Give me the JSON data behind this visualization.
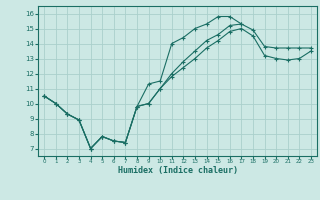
{
  "xlabel": "Humidex (Indice chaleur)",
  "xlim": [
    -0.5,
    23.5
  ],
  "ylim": [
    6.5,
    16.5
  ],
  "xticks": [
    0,
    1,
    2,
    3,
    4,
    5,
    6,
    7,
    8,
    9,
    10,
    11,
    12,
    13,
    14,
    15,
    16,
    17,
    18,
    19,
    20,
    21,
    22,
    23
  ],
  "yticks": [
    7,
    8,
    9,
    10,
    11,
    12,
    13,
    14,
    15,
    16
  ],
  "bg_color": "#cce8e4",
  "grid_color": "#aad0cc",
  "line_color": "#1a6e64",
  "line1_x": [
    0,
    1,
    2,
    3,
    4,
    5,
    6,
    7,
    8,
    9,
    10,
    11,
    12,
    13,
    14,
    15,
    16,
    17
  ],
  "line1_y": [
    10.5,
    10.0,
    9.3,
    8.9,
    7.0,
    7.8,
    7.5,
    7.4,
    9.8,
    11.3,
    11.5,
    14.0,
    14.4,
    15.0,
    15.3,
    15.8,
    15.8,
    15.3
  ],
  "line2_x": [
    0,
    1,
    2,
    3,
    4,
    5,
    6,
    7,
    8,
    9,
    10,
    11,
    12,
    13,
    14,
    15,
    16,
    17,
    18,
    19,
    20,
    21,
    22,
    23
  ],
  "line2_y": [
    10.5,
    10.0,
    9.3,
    8.9,
    7.0,
    7.8,
    7.5,
    7.4,
    9.8,
    10.0,
    11.0,
    12.0,
    12.8,
    13.5,
    14.2,
    14.6,
    15.2,
    15.3,
    14.9,
    13.8,
    13.7,
    13.7,
    13.7,
    13.7
  ],
  "line3_x": [
    0,
    1,
    2,
    3,
    4,
    5,
    6,
    7,
    8,
    9,
    10,
    11,
    12,
    13,
    14,
    15,
    16,
    17,
    18,
    19,
    20,
    21,
    22,
    23
  ],
  "line3_y": [
    10.5,
    10.0,
    9.3,
    8.9,
    7.0,
    7.8,
    7.5,
    7.4,
    9.8,
    10.0,
    11.0,
    11.8,
    12.4,
    13.0,
    13.7,
    14.2,
    14.8,
    15.0,
    14.5,
    13.2,
    13.0,
    12.9,
    13.0,
    13.5
  ]
}
